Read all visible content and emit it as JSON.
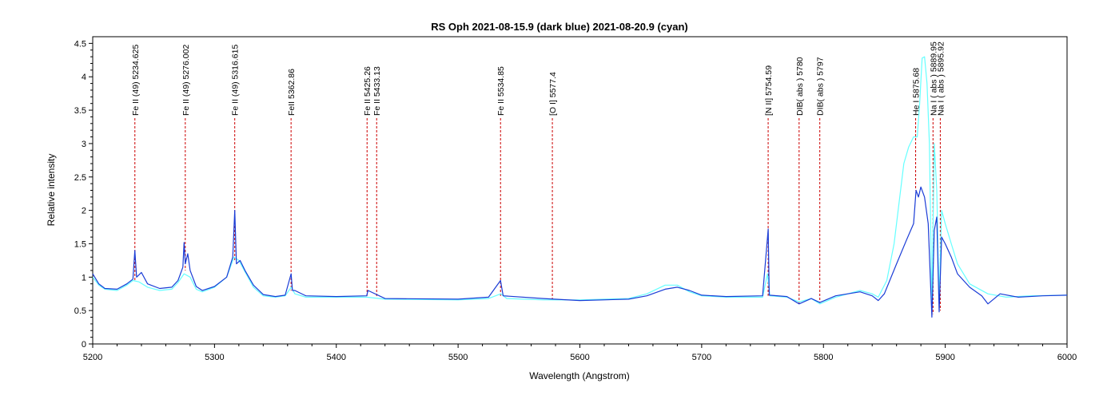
{
  "chart_data": {
    "type": "line",
    "title": "RS Oph   2021-08-15.9  (dark blue) 2021-08-20.9 (cyan)",
    "xlabel": "Wavelength (Angstrom)",
    "ylabel": "Relative intensity",
    "xlim": [
      5200,
      6000
    ],
    "ylim": [
      0,
      4.6
    ],
    "xticks": [
      5200,
      5300,
      5400,
      5500,
      5600,
      5700,
      5800,
      5900,
      6000
    ],
    "yticks": [
      0,
      0.5,
      1,
      1.5,
      2,
      2.5,
      3,
      3.5,
      4,
      4.5
    ],
    "xticks_labels": [
      "5200",
      "5300",
      "5400",
      "5500",
      "5600",
      "5700",
      "5800",
      "5900",
      "6000"
    ],
    "yticks_labels": [
      "0",
      "0.5",
      "1",
      "1.5",
      "2",
      "2.5",
      "3",
      "3.5",
      "4",
      "4.5"
    ],
    "grid": false,
    "line_color": "#cc0000",
    "series": [
      {
        "color": "#66ffff",
        "points": [
          [
            5200,
            1.0
          ],
          [
            5205,
            0.88
          ],
          [
            5210,
            0.82
          ],
          [
            5220,
            0.8
          ],
          [
            5228,
            0.88
          ],
          [
            5233,
            0.95
          ],
          [
            5238,
            0.93
          ],
          [
            5245,
            0.85
          ],
          [
            5255,
            0.8
          ],
          [
            5265,
            0.82
          ],
          [
            5270,
            0.92
          ],
          [
            5275,
            1.05
          ],
          [
            5280,
            1.0
          ],
          [
            5285,
            0.82
          ],
          [
            5290,
            0.78
          ],
          [
            5300,
            0.85
          ],
          [
            5310,
            1.0
          ],
          [
            5316,
            1.3
          ],
          [
            5320,
            1.25
          ],
          [
            5325,
            1.08
          ],
          [
            5332,
            0.85
          ],
          [
            5340,
            0.72
          ],
          [
            5350,
            0.7
          ],
          [
            5358,
            0.72
          ],
          [
            5363,
            0.85
          ],
          [
            5366,
            0.75
          ],
          [
            5375,
            0.7
          ],
          [
            5400,
            0.7
          ],
          [
            5425,
            0.7
          ],
          [
            5440,
            0.67
          ],
          [
            5500,
            0.66
          ],
          [
            5525,
            0.68
          ],
          [
            5535,
            0.75
          ],
          [
            5540,
            0.68
          ],
          [
            5570,
            0.66
          ],
          [
            5600,
            0.66
          ],
          [
            5640,
            0.68
          ],
          [
            5655,
            0.75
          ],
          [
            5670,
            0.88
          ],
          [
            5680,
            0.88
          ],
          [
            5690,
            0.78
          ],
          [
            5700,
            0.72
          ],
          [
            5720,
            0.7
          ],
          [
            5750,
            0.7
          ],
          [
            5754,
            1.05
          ],
          [
            5756,
            0.72
          ],
          [
            5770,
            0.7
          ],
          [
            5780,
            0.63
          ],
          [
            5790,
            0.68
          ],
          [
            5797,
            0.6
          ],
          [
            5810,
            0.7
          ],
          [
            5830,
            0.8
          ],
          [
            5840,
            0.75
          ],
          [
            5845,
            0.7
          ],
          [
            5852,
            0.95
          ],
          [
            5858,
            1.5
          ],
          [
            5862,
            2.1
          ],
          [
            5866,
            2.7
          ],
          [
            5870,
            2.95
          ],
          [
            5874,
            3.1
          ],
          [
            5877,
            3.1
          ],
          [
            5879,
            3.6
          ],
          [
            5881,
            4.28
          ],
          [
            5883,
            4.3
          ],
          [
            5885,
            3.9
          ],
          [
            5887,
            3.0
          ],
          [
            5889,
            0.55
          ],
          [
            5891,
            3.0
          ],
          [
            5893,
            2.3
          ],
          [
            5895,
            0.65
          ],
          [
            5897,
            2.0
          ],
          [
            5900,
            1.8
          ],
          [
            5905,
            1.5
          ],
          [
            5910,
            1.2
          ],
          [
            5920,
            0.9
          ],
          [
            5935,
            0.75
          ],
          [
            5950,
            0.7
          ],
          [
            5970,
            0.72
          ],
          [
            6000,
            0.73
          ]
        ]
      },
      {
        "color": "#1a3cd6",
        "points": [
          [
            5200,
            1.05
          ],
          [
            5205,
            0.9
          ],
          [
            5210,
            0.83
          ],
          [
            5220,
            0.82
          ],
          [
            5228,
            0.9
          ],
          [
            5233,
            0.97
          ],
          [
            5234.6,
            1.4
          ],
          [
            5236,
            1.0
          ],
          [
            5240,
            1.07
          ],
          [
            5245,
            0.9
          ],
          [
            5255,
            0.83
          ],
          [
            5265,
            0.85
          ],
          [
            5270,
            0.95
          ],
          [
            5274,
            1.15
          ],
          [
            5275,
            1.52
          ],
          [
            5276,
            1.2
          ],
          [
            5278,
            1.35
          ],
          [
            5280,
            1.1
          ],
          [
            5285,
            0.86
          ],
          [
            5290,
            0.8
          ],
          [
            5300,
            0.86
          ],
          [
            5310,
            1.0
          ],
          [
            5315,
            1.3
          ],
          [
            5316.6,
            2.0
          ],
          [
            5318,
            1.2
          ],
          [
            5321,
            1.25
          ],
          [
            5325,
            1.1
          ],
          [
            5332,
            0.88
          ],
          [
            5340,
            0.74
          ],
          [
            5350,
            0.71
          ],
          [
            5358,
            0.73
          ],
          [
            5362.9,
            1.05
          ],
          [
            5364,
            0.8
          ],
          [
            5366,
            0.8
          ],
          [
            5375,
            0.72
          ],
          [
            5400,
            0.71
          ],
          [
            5425,
            0.72
          ],
          [
            5426,
            0.8
          ],
          [
            5440,
            0.68
          ],
          [
            5500,
            0.67
          ],
          [
            5525,
            0.7
          ],
          [
            5534.8,
            0.95
          ],
          [
            5537,
            0.72
          ],
          [
            5570,
            0.68
          ],
          [
            5600,
            0.65
          ],
          [
            5640,
            0.67
          ],
          [
            5655,
            0.72
          ],
          [
            5670,
            0.82
          ],
          [
            5680,
            0.85
          ],
          [
            5690,
            0.8
          ],
          [
            5700,
            0.73
          ],
          [
            5720,
            0.71
          ],
          [
            5750,
            0.72
          ],
          [
            5754.6,
            1.72
          ],
          [
            5755.5,
            0.73
          ],
          [
            5770,
            0.71
          ],
          [
            5780,
            0.6
          ],
          [
            5790,
            0.68
          ],
          [
            5797,
            0.62
          ],
          [
            5810,
            0.72
          ],
          [
            5830,
            0.78
          ],
          [
            5840,
            0.72
          ],
          [
            5845,
            0.65
          ],
          [
            5850,
            0.75
          ],
          [
            5860,
            1.2
          ],
          [
            5868,
            1.55
          ],
          [
            5874,
            1.8
          ],
          [
            5876,
            2.3
          ],
          [
            5878,
            2.2
          ],
          [
            5880,
            2.35
          ],
          [
            5883,
            2.2
          ],
          [
            5886,
            1.8
          ],
          [
            5889,
            0.4
          ],
          [
            5891,
            1.7
          ],
          [
            5893,
            1.9
          ],
          [
            5895,
            0.48
          ],
          [
            5897,
            1.6
          ],
          [
            5900,
            1.5
          ],
          [
            5905,
            1.3
          ],
          [
            5910,
            1.05
          ],
          [
            5920,
            0.85
          ],
          [
            5930,
            0.72
          ],
          [
            5935,
            0.6
          ],
          [
            5945,
            0.75
          ],
          [
            5960,
            0.7
          ],
          [
            5980,
            0.72
          ],
          [
            6000,
            0.73
          ]
        ]
      }
    ],
    "annotations": [
      {
        "x": 5234.625,
        "label": "Fe II (49) 5234.625",
        "bottom_y": 0.95
      },
      {
        "x": 5276.002,
        "label": "Fe II (49) 5276.002",
        "bottom_y": 1.1
      },
      {
        "x": 5316.615,
        "label": "Fe II (49) 5316.615",
        "bottom_y": 1.25
      },
      {
        "x": 5362.86,
        "label": "FeII 5362.86",
        "bottom_y": 0.8
      },
      {
        "x": 5425.26,
        "label": "Fe II 5425.26",
        "bottom_y": 0.72
      },
      {
        "x": 5433.13,
        "label": "Fe II 5433.13",
        "bottom_y": 0.7
      },
      {
        "x": 5534.85,
        "label": "Fe II 5534.85",
        "bottom_y": 0.72
      },
      {
        "x": 5577.4,
        "label": "[O I] 5577.4",
        "bottom_y": 0.66
      },
      {
        "x": 5754.59,
        "label": "[N II] 5754.59",
        "bottom_y": 0.72
      },
      {
        "x": 5780,
        "label": "DIB( abs ) 5780",
        "bottom_y": 0.6
      },
      {
        "x": 5797,
        "label": "DIB( abs ) 5797",
        "bottom_y": 0.62
      },
      {
        "x": 5875.68,
        "label": "He I 5875.68",
        "bottom_y": 2.3
      },
      {
        "x": 5889.95,
        "label": "Na I ( abs ) 5889.95",
        "bottom_y": 0.45
      },
      {
        "x": 5895.92,
        "label": "Na I ( abs ) 5895.92",
        "bottom_y": 0.5
      }
    ]
  }
}
